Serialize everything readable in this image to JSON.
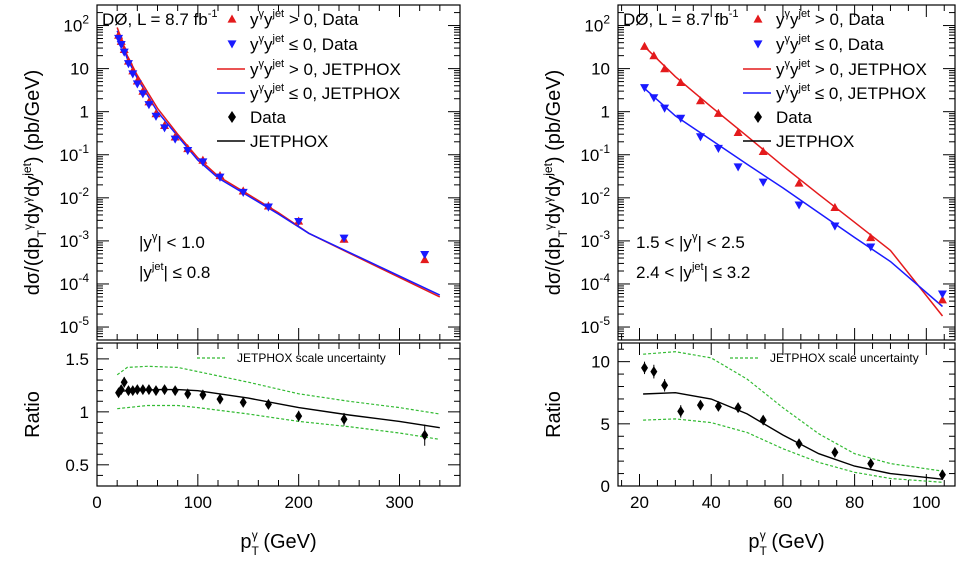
{
  "chart_data": [
    {
      "type": "scatter",
      "experiment": "DØ, L = 8.7 fb",
      "lumi_sup": "-1",
      "region": [
        "|y",
        "γ",
        "| < 1.0",
        "|y",
        "jet",
        "| ≤ 0.8"
      ],
      "region_lines": [
        "|yγ| < 1.0",
        "|yjet| ≤ 0.8"
      ],
      "ylabel": "dσ/(dpTγdyγdyjet) (pb/GeV)",
      "ratio_ylabel": "Ratio",
      "xlabel": "pTγ (GeV)",
      "xlim": [
        0,
        360
      ],
      "ylim": [
        5e-06,
        300
      ],
      "ratio_ylim": [
        0.3,
        1.65
      ],
      "log_y": true,
      "x_ticks": [
        0,
        100,
        200,
        300
      ],
      "ratio_ticks": [
        0.5,
        1,
        1.5
      ],
      "legend": [
        "yγyjet > 0, Data",
        "yγyjet ≤ 0, Data",
        "yγyjet > 0, JETPHOX",
        "yγyjet ≤ 0, JETPHOX",
        "Data",
        "JETPHOX"
      ],
      "ratio_legend": "JETPHOX scale uncertainty",
      "series": [
        {
          "name": "yγyjet > 0, Data",
          "x": [
            21.4,
            24.0,
            27.0,
            31.2,
            35.5,
            40.0,
            45.5,
            51.5,
            58.5,
            67.0,
            77.5,
            90.0,
            105,
            122,
            145,
            170,
            200,
            245,
            325
          ],
          "y": [
            60,
            43,
            28,
            15,
            8.9,
            5.2,
            3.0,
            1.7,
            0.9,
            0.48,
            0.26,
            0.14,
            0.075,
            0.033,
            0.0145,
            0.0065,
            0.0029,
            0.0011,
            0.00037
          ]
        },
        {
          "name": "yγyjet ≤ 0, Data",
          "x": [
            21.4,
            24.0,
            27.0,
            31.2,
            35.5,
            40.0,
            45.5,
            51.5,
            58.5,
            67.0,
            77.5,
            90.0,
            105,
            122,
            145,
            170,
            200,
            245,
            325
          ],
          "y": [
            50,
            36,
            24,
            13,
            7.5,
            4.4,
            2.6,
            1.45,
            0.78,
            0.42,
            0.23,
            0.125,
            0.068,
            0.03,
            0.0133,
            0.0061,
            0.0028,
            0.00115,
            0.00048
          ]
        },
        {
          "name": "yγyjet > 0, JETPHOX",
          "x": [
            20,
            30,
            40,
            60,
            80,
            100,
            120,
            150,
            180,
            210,
            260,
            340
          ],
          "y": [
            90,
            20,
            7,
            1.2,
            0.3,
            0.085,
            0.032,
            0.012,
            0.0045,
            0.0015,
            0.0004,
            5e-05
          ]
        },
        {
          "name": "yγyjet ≤ 0, JETPHOX",
          "x": [
            20,
            30,
            40,
            60,
            80,
            100,
            120,
            150,
            180,
            210,
            260,
            340
          ],
          "y": [
            75,
            17,
            6,
            1.0,
            0.27,
            0.075,
            0.029,
            0.011,
            0.0042,
            0.0015,
            0.00042,
            5.5e-05
          ]
        }
      ],
      "ratio_data": {
        "x": [
          21.4,
          24.0,
          27.0,
          31.2,
          35.5,
          40.0,
          45.5,
          51.5,
          58.5,
          67.0,
          77.5,
          90.0,
          105,
          122,
          145,
          170,
          200,
          245,
          325
        ],
        "y": [
          1.18,
          1.21,
          1.28,
          1.2,
          1.2,
          1.21,
          1.21,
          1.21,
          1.2,
          1.21,
          1.2,
          1.17,
          1.16,
          1.12,
          1.09,
          1.07,
          0.96,
          0.93,
          0.78
        ],
        "err": [
          0.04,
          0.04,
          0.05,
          0.04,
          0.03,
          0.03,
          0.03,
          0.03,
          0.03,
          0.03,
          0.03,
          0.03,
          0.03,
          0.04,
          0.04,
          0.04,
          0.05,
          0.06,
          0.1
        ]
      },
      "ratio_theory": {
        "x": [
          20,
          30,
          40,
          60,
          80,
          100,
          150,
          200,
          250,
          300,
          340
        ],
        "y": [
          1.19,
          1.2,
          1.2,
          1.21,
          1.21,
          1.2,
          1.13,
          1.04,
          0.97,
          0.91,
          0.85
        ]
      },
      "ratio_band_upper": {
        "x": [
          20,
          30,
          50,
          80,
          100,
          150,
          200,
          250,
          300,
          340
        ],
        "y": [
          1.35,
          1.42,
          1.43,
          1.42,
          1.38,
          1.28,
          1.17,
          1.1,
          1.04,
          0.98
        ]
      },
      "ratio_band_lower": {
        "x": [
          20,
          30,
          50,
          80,
          100,
          150,
          200,
          250,
          300,
          340
        ],
        "y": [
          1.03,
          1.04,
          1.06,
          1.06,
          1.04,
          0.98,
          0.91,
          0.86,
          0.8,
          0.74
        ]
      }
    },
    {
      "type": "scatter",
      "experiment": "DØ, L = 8.7 fb",
      "lumi_sup": "-1",
      "region_lines": [
        "1.5 < |yγ| < 2.5",
        "2.4 < |yjet| ≤ 3.2"
      ],
      "ylabel": "dσ/(dpTγdyγdyjet) (pb/GeV)",
      "ratio_ylabel": "Ratio",
      "xlabel": "pTγ (GeV)",
      "xlim": [
        14,
        108
      ],
      "ylim": [
        5e-06,
        300
      ],
      "ratio_ylim": [
        0,
        11.5
      ],
      "log_y": true,
      "x_ticks": [
        20,
        40,
        60,
        80,
        100
      ],
      "ratio_ticks": [
        0,
        5,
        10
      ],
      "legend": [
        "yγyjet > 0, Data",
        "yγyjet ≤ 0, Data",
        "yγyjet > 0, JETPHOX",
        "yγyjet ≤ 0, JETPHOX",
        "Data",
        "JETPHOX"
      ],
      "ratio_legend": "JETPHOX scale uncertainty",
      "series": [
        {
          "name": "yγyjet > 0, Data",
          "x": [
            21.4,
            24.0,
            27.0,
            31.5,
            37.0,
            42.0,
            47.5,
            54.5,
            64.5,
            74.5,
            84.5,
            104.5
          ],
          "y": [
            33,
            20,
            10,
            4.8,
            1.8,
            0.92,
            0.33,
            0.12,
            0.022,
            0.006,
            0.0012,
            4.3e-05
          ]
        },
        {
          "name": "yγyjet ≤ 0, Data",
          "x": [
            21.4,
            24.0,
            27.0,
            31.5,
            37.0,
            42.0,
            47.5,
            54.5,
            64.5,
            74.5,
            84.5,
            104.5
          ],
          "y": [
            3.6,
            2.1,
            1.2,
            0.7,
            0.26,
            0.14,
            0.052,
            0.023,
            0.0068,
            0.0022,
            0.00072,
            5.8e-05
          ]
        },
        {
          "name": "yγyjet > 0, JETPHOX",
          "x": [
            21,
            30,
            40,
            50,
            60,
            70,
            80,
            90,
            104.5
          ],
          "y": [
            35,
            6.5,
            1.3,
            0.27,
            0.055,
            0.012,
            0.0027,
            0.0006,
            1.8e-05
          ]
        },
        {
          "name": "yγyjet ≤ 0, JETPHOX",
          "x": [
            21,
            30,
            40,
            50,
            60,
            70,
            80,
            90,
            104.5
          ],
          "y": [
            3.7,
            0.8,
            0.22,
            0.06,
            0.017,
            0.0045,
            0.0012,
            0.00033,
            3e-05
          ]
        }
      ],
      "ratio_data": {
        "x": [
          21.4,
          24.0,
          27.0,
          31.5,
          37.0,
          42.0,
          47.5,
          54.5,
          64.5,
          74.5,
          84.5,
          104.5
        ],
        "y": [
          9.5,
          9.2,
          8.1,
          6.0,
          6.5,
          6.4,
          6.3,
          5.3,
          3.4,
          2.7,
          1.8,
          0.9
        ],
        "err": [
          0.5,
          0.55,
          0.5,
          0.5,
          0.3,
          0.3,
          0.3,
          0.25,
          0.2,
          0.2,
          0.2,
          0.3
        ]
      },
      "ratio_theory": {
        "x": [
          21,
          30,
          40,
          50,
          60,
          70,
          80,
          90,
          104.5
        ],
        "y": [
          7.4,
          7.5,
          7.0,
          5.8,
          4.1,
          2.6,
          1.6,
          1.0,
          0.55
        ]
      },
      "ratio_band_upper": {
        "x": [
          21,
          30,
          40,
          50,
          60,
          70,
          80,
          90,
          104.5
        ],
        "y": [
          10.6,
          10.8,
          10.3,
          8.6,
          6.3,
          4.2,
          2.6,
          1.8,
          1.2
        ]
      },
      "ratio_band_lower": {
        "x": [
          21,
          30,
          40,
          50,
          60,
          70,
          80,
          90,
          104.5
        ],
        "y": [
          5.3,
          5.4,
          5.1,
          4.3,
          3.0,
          1.9,
          1.1,
          0.6,
          0.3
        ]
      }
    }
  ],
  "colors": {
    "up": "#e41a1c",
    "down": "#1a1aff",
    "band": "#33bb33",
    "ink": "#000000"
  }
}
